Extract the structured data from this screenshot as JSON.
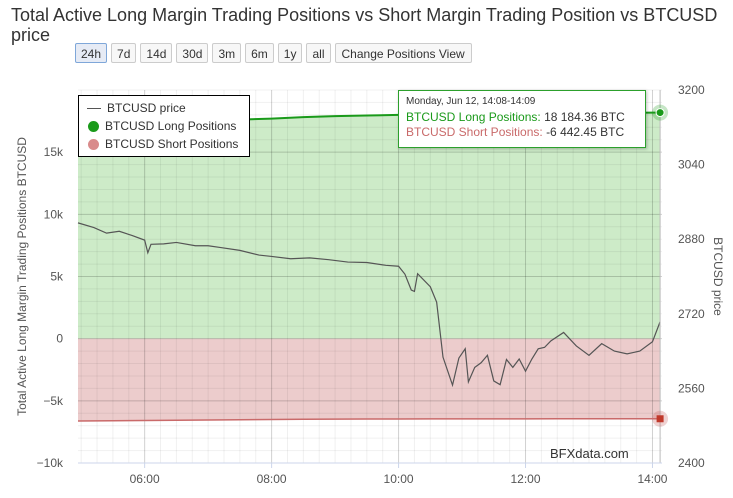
{
  "title": "Total Active Long Margin Trading Positions vs Short Margin Trading Position vs BTCUSD price",
  "range_buttons": [
    "24h",
    "7d",
    "14d",
    "30d",
    "3m",
    "6m",
    "1y",
    "all"
  ],
  "active_range": "24h",
  "view_button": "Change Positions View",
  "credit": "BFXdata.com",
  "tooltip": {
    "time": "Monday, Jun 12, 14:08-14:09",
    "long_label": "BTCUSD Long Positions:",
    "long_value": "18 184.36 BTC",
    "short_label": "BTCUSD Short Positions:",
    "short_value": "-6 442.45 BTC"
  },
  "colors": {
    "long": "#1a9a1a",
    "long_fill": "#cdebc8",
    "short": "#c96a6a",
    "short_fill": "#eccccc",
    "price": "#555555",
    "grid": "#dddddd"
  },
  "chart_data": {
    "type": "area",
    "title": "Total Active Long Margin Trading Positions vs Short Margin Trading Position vs BTCUSD price",
    "xlabel": "",
    "ylabel": "Total Active Long Margin Trading Positions BTCUSD",
    "y2label": "BTCUSD price",
    "x_ticks": [
      "06:00",
      "08:00",
      "10:00",
      "12:00",
      "14:00"
    ],
    "x_tick_hours": [
      6,
      8,
      10,
      12,
      14
    ],
    "xlim": [
      4.95,
      14.15
    ],
    "ylim": [
      -10000,
      20000
    ],
    "y_ticks": [
      -10000,
      -5000,
      0,
      5000,
      10000,
      15000
    ],
    "y_tick_labels": [
      "−10k",
      "−5k",
      "0",
      "5k",
      "10k",
      "15k"
    ],
    "y2lim": [
      2400,
      3200
    ],
    "y2_ticks": [
      2400,
      2560,
      2720,
      2880,
      3040,
      3200
    ],
    "y2_tick_labels": [
      "2400",
      "2560",
      "2720",
      "2880",
      "3040",
      "3200"
    ],
    "legend_position": "top-left",
    "grid": true,
    "series": [
      {
        "name": "BTCUSD price",
        "axis": "right",
        "x": [
          4.95,
          5.2,
          5.4,
          5.6,
          5.8,
          6.0,
          6.05,
          6.1,
          6.3,
          6.5,
          6.8,
          7.0,
          7.2,
          7.5,
          7.8,
          8.0,
          8.3,
          8.6,
          8.9,
          9.2,
          9.5,
          9.8,
          10.0,
          10.1,
          10.2,
          10.25,
          10.3,
          10.5,
          10.6,
          10.7,
          10.85,
          10.95,
          11.05,
          11.1,
          11.2,
          11.3,
          11.4,
          11.5,
          11.6,
          11.7,
          11.8,
          11.9,
          12.0,
          12.1,
          12.2,
          12.3,
          12.4,
          12.6,
          12.8,
          13.0,
          13.2,
          13.4,
          13.6,
          13.8,
          14.0,
          14.12
        ],
        "values": [
          2915,
          2905,
          2893,
          2897,
          2888,
          2878,
          2851,
          2869,
          2870,
          2873,
          2866,
          2866,
          2862,
          2856,
          2846,
          2843,
          2838,
          2840,
          2836,
          2831,
          2830,
          2824,
          2822,
          2805,
          2771,
          2768,
          2806,
          2778,
          2745,
          2627,
          2567,
          2625,
          2645,
          2574,
          2605,
          2615,
          2631,
          2576,
          2568,
          2622,
          2605,
          2623,
          2597,
          2623,
          2645,
          2648,
          2662,
          2680,
          2651,
          2631,
          2656,
          2640,
          2634,
          2640,
          2660,
          2703
        ]
      },
      {
        "name": "BTCUSD Long Positions",
        "axis": "left",
        "x": [
          4.95,
          5.5,
          6.0,
          6.5,
          7.0,
          7.5,
          8.0,
          8.5,
          9.0,
          9.5,
          10.0,
          10.5,
          11.0,
          11.5,
          12.0,
          12.5,
          13.0,
          13.5,
          14.0,
          14.12
        ],
        "values": [
          17350,
          17420,
          17500,
          17560,
          17580,
          17620,
          17700,
          17820,
          17900,
          17950,
          18000,
          18050,
          18080,
          18100,
          18120,
          18140,
          18160,
          18170,
          18180,
          18184.36
        ]
      },
      {
        "name": "BTCUSD Short Positions",
        "axis": "left",
        "x": [
          4.95,
          5.5,
          6.0,
          6.5,
          7.0,
          7.5,
          8.0,
          8.5,
          9.0,
          9.5,
          10.0,
          10.5,
          11.0,
          11.5,
          12.0,
          12.5,
          13.0,
          13.5,
          14.0,
          14.12
        ],
        "values": [
          -6620,
          -6600,
          -6580,
          -6560,
          -6540,
          -6520,
          -6500,
          -6480,
          -6470,
          -6465,
          -6460,
          -6455,
          -6450,
          -6448,
          -6447,
          -6446,
          -6445,
          -6444,
          -6443,
          -6442.45
        ]
      }
    ]
  }
}
